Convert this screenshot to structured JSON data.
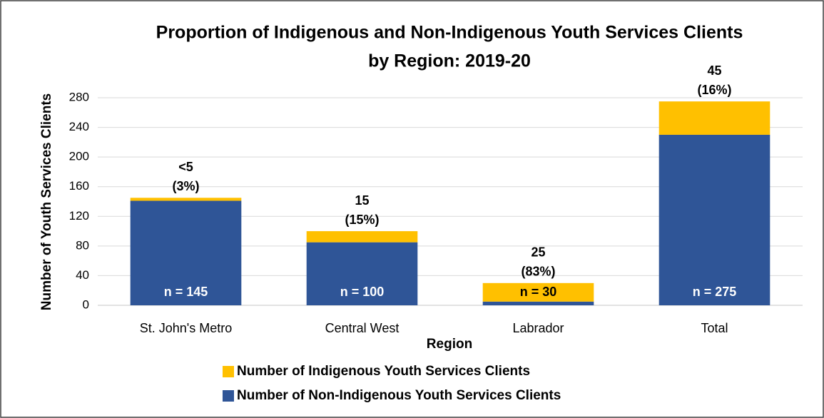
{
  "chart_data": {
    "type": "stacked_bar",
    "title": [
      "Proportion of Indigenous and Non-Indigenous Youth Services Clients",
      "by Region: 2019-20"
    ],
    "x_label": "Region",
    "y_label": "Number of Youth Services Clients",
    "categories": [
      "St. John's Metro",
      "Central West",
      "Labrador",
      "Total"
    ],
    "series": [
      {
        "name": "Number of Non-Indigenous Youth Services Clients",
        "color": "#2f5597",
        "values": [
          141,
          85,
          5,
          230
        ]
      },
      {
        "name": "Number of Indigenous Youth Services Clients",
        "color": "#ffc000",
        "values": [
          4,
          15,
          25,
          45
        ],
        "value_labels": [
          "<5",
          "15",
          "25",
          "45"
        ]
      }
    ],
    "shares": {
      "values": [
        3,
        15,
        83,
        16
      ],
      "value_labels": [
        "(3%)",
        "(15%)",
        "(83%)",
        "(16%)"
      ]
    },
    "totals": {
      "values": [
        145,
        100,
        30,
        275
      ],
      "value_labels": [
        "n = 145",
        "n = 100",
        "n = 30",
        "n = 275"
      ]
    },
    "ylim": [
      0,
      280
    ],
    "yticks": [
      0,
      40,
      80,
      120,
      160,
      200,
      240,
      280
    ],
    "grid": true,
    "legend": "bottom"
  }
}
